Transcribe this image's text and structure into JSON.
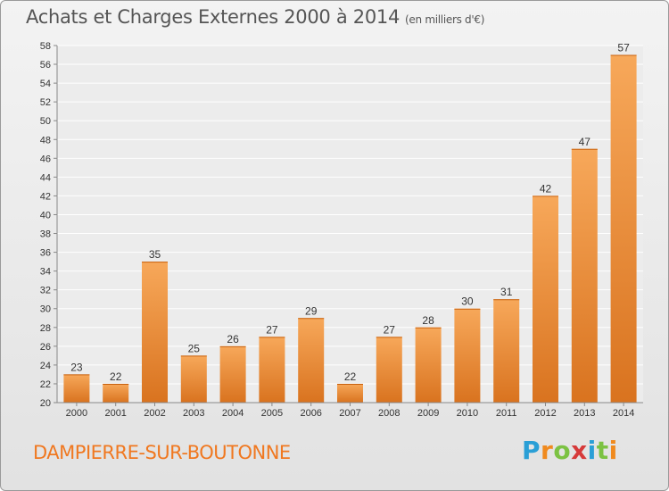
{
  "chart_data": {
    "type": "bar",
    "title": "Achats et Charges Externes 2000 à 2014",
    "subtitle": "(en milliers d'€)",
    "categories": [
      "2000",
      "2001",
      "2002",
      "2003",
      "2004",
      "2005",
      "2006",
      "2007",
      "2008",
      "2009",
      "2010",
      "2011",
      "2012",
      "2013",
      "2014"
    ],
    "values": [
      23,
      22,
      35,
      25,
      26,
      27,
      29,
      22,
      27,
      28,
      30,
      31,
      42,
      47,
      57
    ],
    "ylim": [
      20,
      58
    ],
    "yticks": [
      20,
      22,
      24,
      26,
      28,
      30,
      32,
      34,
      36,
      38,
      40,
      42,
      44,
      46,
      48,
      50,
      52,
      54,
      56,
      58
    ],
    "grid": true,
    "bar_color_light": "#f7a85a",
    "bar_color_dark": "#d9731f"
  },
  "footer": {
    "commune": "DAMPIERRE-SUR-BOUTONNE",
    "logo_letters": [
      "P",
      "r",
      "o",
      "x",
      "i",
      "t",
      "i"
    ],
    "logo_colors": [
      "#2a9fd6",
      "#f08a1e",
      "#7cc243",
      "#d63a3a",
      "#2a9fd6",
      "#7cc243",
      "#f08a1e"
    ]
  }
}
